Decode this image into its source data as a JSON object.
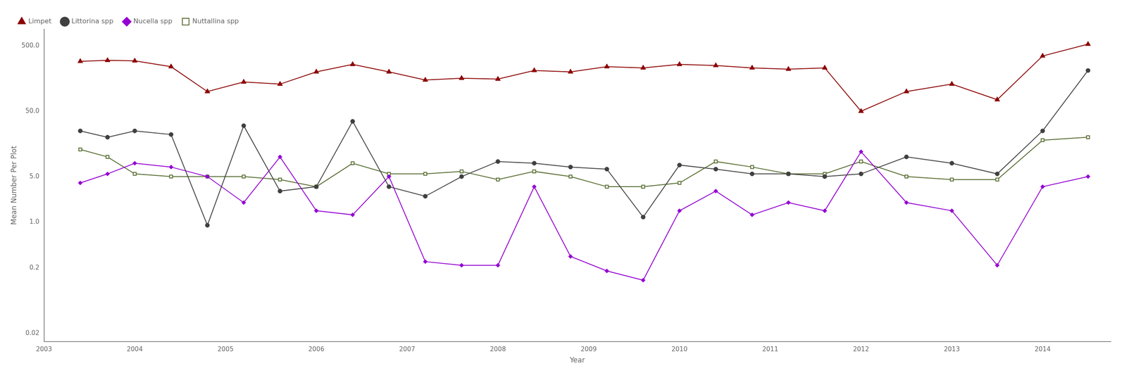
{
  "chart_data": {
    "type": "line",
    "xlabel": "Year",
    "ylabel": "Mean Number Per Plot",
    "log": "y",
    "grid": false,
    "legend": "upper left",
    "xlim": [
      2003.0,
      2014.75
    ],
    "xticks": [
      2003,
      2004,
      2005,
      2006,
      2007,
      2008,
      2009,
      2010,
      2011,
      2012,
      2013,
      2014
    ],
    "ylim": [
      0.015,
      900
    ],
    "yticks": [
      0.02,
      0.2,
      {
        "value": 1.0,
        "label": "1.0"
      },
      {
        "value": 5.0,
        "label": "5.0"
      },
      {
        "value": 50.0,
        "label": "50.0"
      },
      {
        "value": 500.0,
        "label": "500.0"
      }
    ],
    "x": [
      2003.4,
      2003.7,
      2004.0,
      2004.4,
      2004.8,
      2005.2,
      2005.6,
      2006.0,
      2006.4,
      2006.8,
      2007.2,
      2007.6,
      2008.0,
      2008.4,
      2008.8,
      2009.2,
      2009.6,
      2010.0,
      2010.4,
      2010.8,
      2011.2,
      2011.6,
      2012.0,
      2012.5,
      2013.0,
      2013.5,
      2014.0,
      2014.5
    ],
    "series": [
      {
        "name": "Limpet",
        "color": "#8B0000",
        "marker": "triangle",
        "values": [
          290,
          300,
          295,
          240,
          100,
          140,
          130,
          200,
          260,
          200,
          150,
          160,
          155,
          210,
          200,
          240,
          230,
          260,
          250,
          230,
          220,
          230,
          50,
          100,
          130,
          75,
          350,
          530
        ]
      },
      {
        "name": "Littorina spp",
        "color": "#404040",
        "marker": "circle",
        "values": [
          25,
          20,
          25,
          22,
          0.9,
          30,
          3.0,
          3.5,
          35,
          3.5,
          2.5,
          5.0,
          8.5,
          8.0,
          7.0,
          6.5,
          1.2,
          7.5,
          6.5,
          5.5,
          5.5,
          5.0,
          5.5,
          10.0,
          8.0,
          5.5,
          25.0,
          210.0
        ]
      },
      {
        "name": "Nucella spp",
        "color": "#9400D3",
        "marker": "diamond",
        "values": [
          4.0,
          5.5,
          8.0,
          7.0,
          5.0,
          2.0,
          10.0,
          1.5,
          1.3,
          5.0,
          0.25,
          0.22,
          0.22,
          3.5,
          0.3,
          0.18,
          0.13,
          1.5,
          3.0,
          1.3,
          2.0,
          1.5,
          12.0,
          2.0,
          1.5,
          0.22,
          3.5,
          5.0
        ]
      },
      {
        "name": "Nuttallina spp",
        "color": "#556B2F",
        "marker": "open square",
        "values": [
          13.0,
          10.0,
          5.5,
          5.0,
          5.0,
          5.0,
          4.5,
          3.5,
          8.0,
          5.5,
          5.5,
          6.0,
          4.5,
          6.0,
          5.0,
          3.5,
          3.5,
          4.0,
          8.5,
          7.0,
          5.5,
          5.5,
          8.5,
          5.0,
          4.5,
          4.5,
          18.0,
          20.0
        ]
      }
    ]
  }
}
